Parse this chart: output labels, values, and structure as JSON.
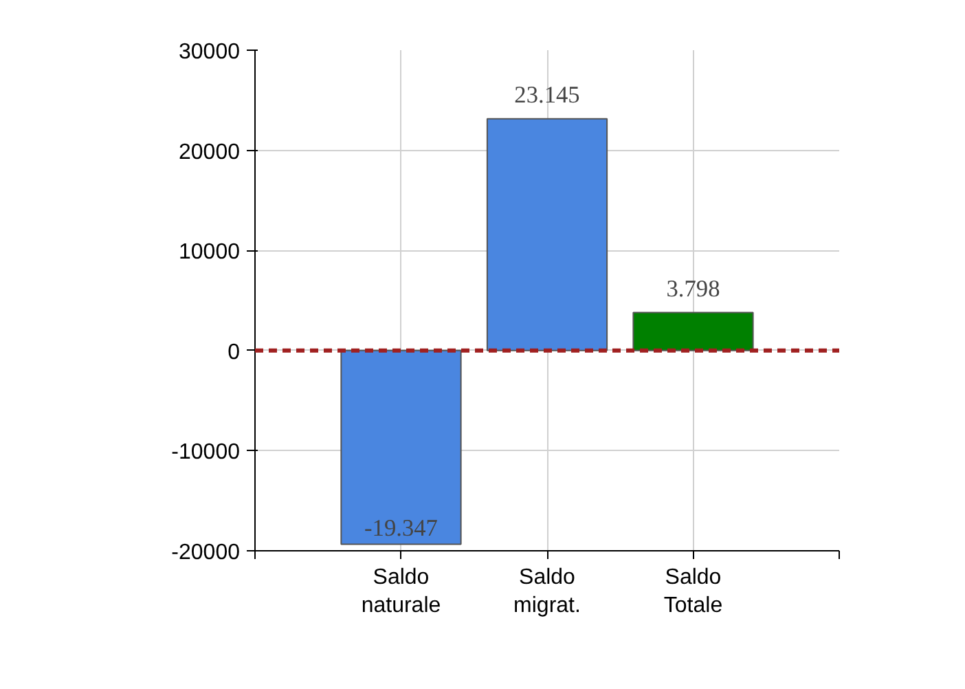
{
  "chart_data": {
    "type": "bar",
    "categories": [
      "Saldo naturale",
      "Saldo migrat.",
      "Saldo Totale"
    ],
    "values": [
      -19347,
      23145,
      3798
    ],
    "colors": [
      "#4a86e0",
      "#4a86e0",
      "#008000"
    ],
    "value_labels": [
      "-19.347",
      "23.145",
      "3.798"
    ],
    "ylim": [
      -20000,
      30000
    ],
    "yticks": [
      -20000,
      -10000,
      0,
      10000,
      20000,
      30000
    ],
    "grid": true,
    "ref_lines": [
      {
        "axis": "y",
        "value": 0,
        "color": "#a02020",
        "line_style": "dashed"
      }
    ]
  }
}
